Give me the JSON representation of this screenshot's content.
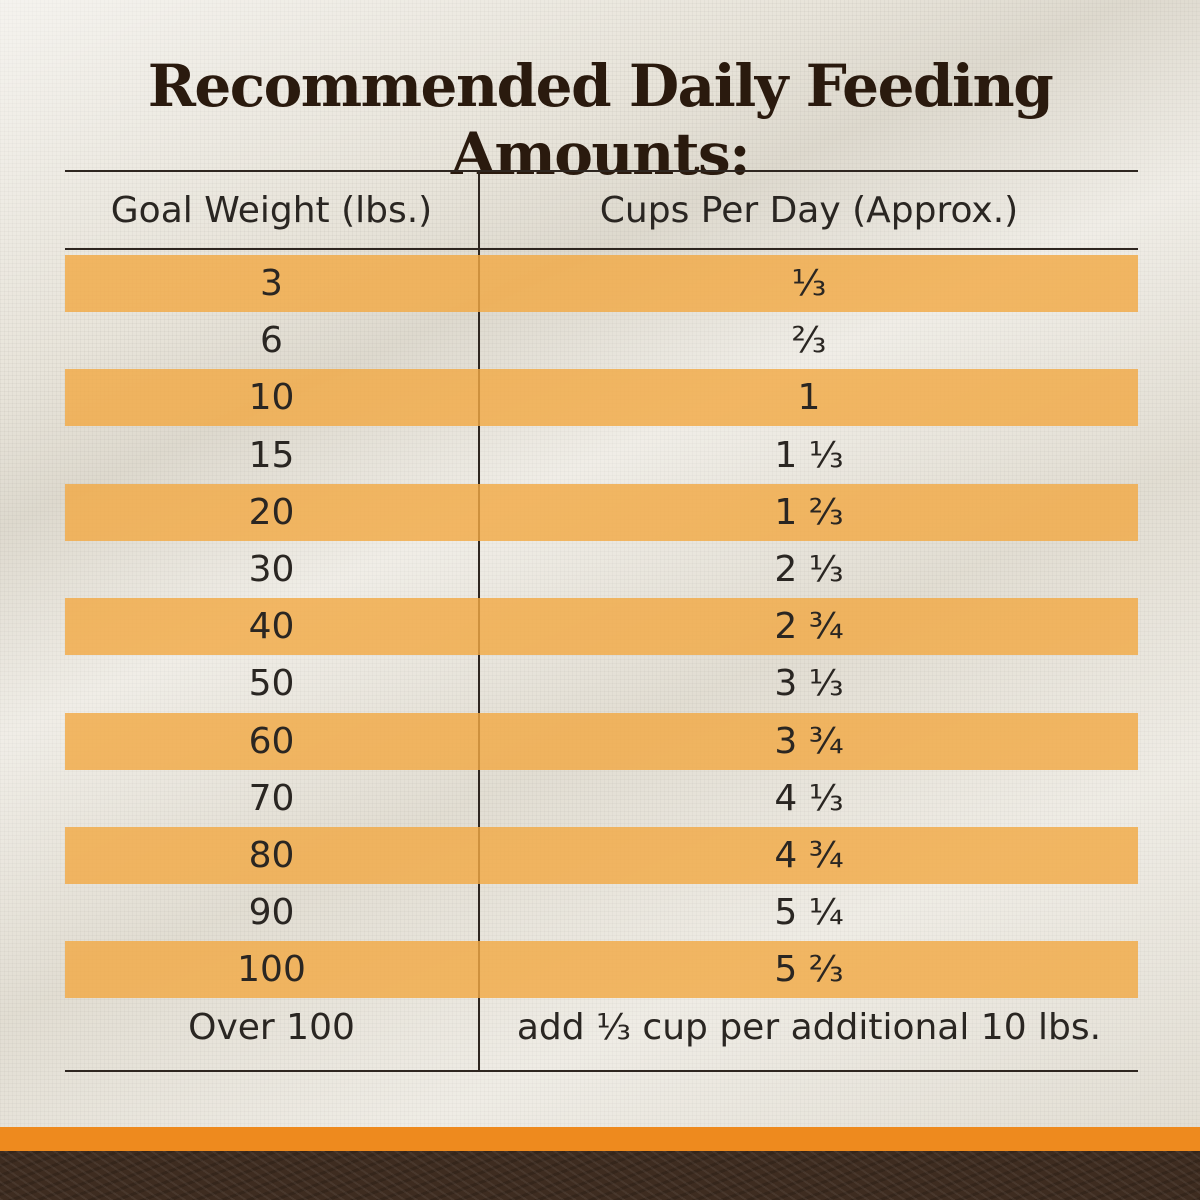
{
  "title": "Recommended Daily Feeding Amounts:",
  "table": {
    "headers": [
      "Goal Weight (lbs.)",
      "Cups Per Day (Approx.)"
    ],
    "rows": [
      {
        "weight": "3",
        "cups": "⅓"
      },
      {
        "weight": "6",
        "cups": "⅔"
      },
      {
        "weight": "10",
        "cups": "1"
      },
      {
        "weight": "15",
        "cups": "1 ⅓"
      },
      {
        "weight": "20",
        "cups": "1 ⅔"
      },
      {
        "weight": "30",
        "cups": "2 ⅓"
      },
      {
        "weight": "40",
        "cups": "2 ¾"
      },
      {
        "weight": "50",
        "cups": "3 ⅓"
      },
      {
        "weight": "60",
        "cups": "3 ¾"
      },
      {
        "weight": "70",
        "cups": "4 ⅓"
      },
      {
        "weight": "80",
        "cups": "4 ¾"
      },
      {
        "weight": "90",
        "cups": "5 ¼"
      },
      {
        "weight": "100",
        "cups": "5 ⅔"
      },
      {
        "weight": "Over 100",
        "cups": "add ⅓ cup per additional 10 lbs."
      }
    ]
  },
  "colors": {
    "title": "#2a1a0e",
    "row_shade": "#f2aa46",
    "accent_band": "#ee8a1e",
    "footer": "#3e2c20"
  }
}
